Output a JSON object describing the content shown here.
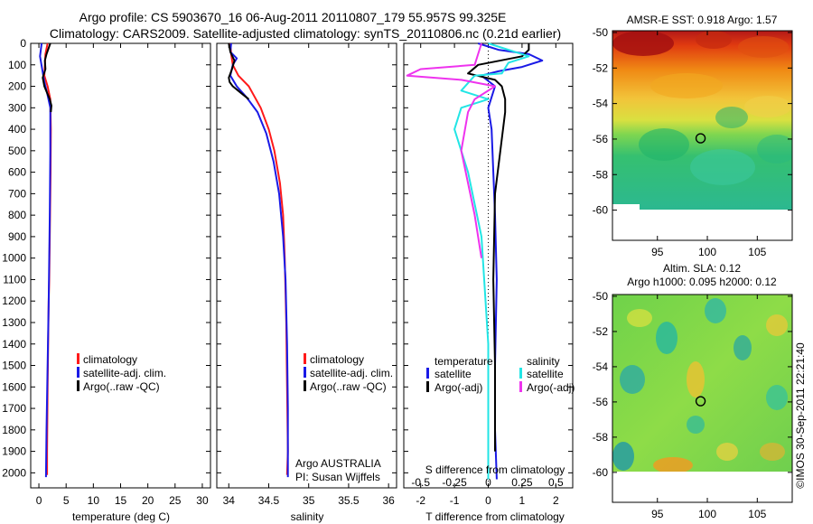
{
  "figure": {
    "title_line1": "Argo profile: CS 5903670_16 06-Aug-2011 20110807_179 55.957S 99.325E",
    "title_line2": "Climatology: CARS2009. Satellite-adjusted climatology: synTS_20110806.nc (0.21d earlier)",
    "credit_line1": "Argo AUSTRALIA",
    "credit_line2": "PI: Susan Wijffels",
    "timestamp": "©IMOS 30-Sep-2011 22:21:40"
  },
  "colors": {
    "climatology": "#ff1a1a",
    "satellite": "#1a1ae6",
    "argo": "#000000",
    "sat_sal": "#22e5e5",
    "argo_sal": "#ee33ee"
  },
  "chart_data": [
    {
      "type": "line",
      "xlabel": "temperature (deg C)",
      "ylabel": "",
      "xlim": [
        -1.5,
        31.5
      ],
      "ylim": [
        2070,
        0
      ],
      "xticks": [
        0,
        5,
        10,
        15,
        20,
        25,
        30
      ],
      "yticks": [
        0,
        100,
        200,
        300,
        400,
        500,
        600,
        700,
        800,
        900,
        1000,
        1100,
        1200,
        1300,
        1400,
        1500,
        1600,
        1700,
        1800,
        1900,
        2000
      ],
      "legend": [
        "climatology",
        "satellite-adj. clim.",
        "Argo(..raw -QC)"
      ],
      "series": [
        {
          "name": "climatology",
          "color": "#ff1a1a",
          "x": [
            1.6,
            1.2,
            1.0,
            1.6,
            2.1,
            2.2,
            2.15,
            2.1,
            2.05,
            2.0,
            1.95,
            1.9,
            1.8,
            1.7,
            1.6,
            1.5,
            1.5
          ],
          "y": [
            0,
            50,
            150,
            200,
            260,
            400,
            600,
            700,
            800,
            900,
            1000,
            1100,
            1200,
            1400,
            1600,
            1900,
            2010
          ]
        },
        {
          "name": "satellite-adj. clim.",
          "color": "#1a1ae6",
          "x": [
            0.5,
            0.2,
            0.6,
            1.0,
            1.5,
            2.1,
            2.1,
            2.0,
            1.9,
            1.8,
            1.6,
            1.4,
            1.3
          ],
          "y": [
            0,
            60,
            120,
            180,
            230,
            300,
            500,
            800,
            1000,
            1200,
            1500,
            1800,
            2020
          ]
        },
        {
          "name": "Argo(..raw -QC)",
          "color": "#000000",
          "x": [
            2.1,
            1.4,
            1.1,
            1.2,
            0.7,
            1.0,
            1.5,
            2.0,
            2.3,
            2.2
          ],
          "y": [
            0,
            50,
            80,
            120,
            160,
            200,
            230,
            260,
            290,
            320
          ]
        }
      ]
    },
    {
      "type": "line",
      "xlabel": "salinity",
      "ylabel": "",
      "xlim": [
        33.85,
        36.1
      ],
      "ylim": [
        2070,
        0
      ],
      "xticks": [
        34,
        34.5,
        35,
        35.5,
        36
      ],
      "xtick_labels": [
        "34",
        "34.5",
        "35",
        "35.5",
        "36"
      ],
      "legend": [
        "climatology",
        "satellite-adj. clim.",
        "Argo(..raw -QC)"
      ],
      "series": [
        {
          "name": "climatology",
          "color": "#ff1a1a",
          "x": [
            34.02,
            34.03,
            34.05,
            34.12,
            34.25,
            34.4,
            34.5,
            34.57,
            34.64,
            34.68,
            34.7,
            34.72,
            34.73,
            34.74,
            34.73
          ],
          "y": [
            0,
            50,
            100,
            150,
            200,
            300,
            400,
            500,
            650,
            800,
            1000,
            1300,
            1600,
            1900,
            2010
          ]
        },
        {
          "name": "satellite-adj. clim.",
          "color": "#1a1ae6",
          "x": [
            34.03,
            34.02,
            34.1,
            34.05,
            34.02,
            34.1,
            34.22,
            34.36,
            34.47,
            34.56,
            34.63,
            34.68,
            34.71,
            34.73,
            34.74,
            34.74
          ],
          "y": [
            0,
            40,
            70,
            100,
            150,
            200,
            250,
            320,
            420,
            550,
            700,
            900,
            1100,
            1400,
            1700,
            2020
          ]
        },
        {
          "name": "Argo(..raw -QC)",
          "color": "#000000",
          "x": [
            34.0,
            34.02,
            34.07,
            34.04,
            34.0,
            34.01,
            34.05,
            34.15,
            34.25
          ],
          "y": [
            0,
            40,
            80,
            120,
            160,
            180,
            200,
            230,
            260
          ]
        }
      ]
    },
    {
      "type": "line",
      "xlabel": "T difference from climatology",
      "xlabel_top": "S difference from climatology",
      "ylabel": "",
      "xlim": [
        -2.5,
        2.5
      ],
      "ylim": [
        2070,
        0
      ],
      "xticks": [
        -2,
        -1,
        0,
        1,
        2
      ],
      "xticks_top": [
        -0.5,
        -0.25,
        0,
        0.25,
        0.5
      ],
      "xtick_labels_top": [
        "-0.5",
        "-0.25",
        "0",
        "0.25",
        "0.5"
      ],
      "legend_titles": [
        "temperature",
        "salinity"
      ],
      "legend": [
        "satellite",
        "Argo(-adj)",
        "satellite",
        "Argo(-adj)"
      ],
      "series": [
        {
          "name": "satellite",
          "group": "temperature",
          "color": "#1a1ae6",
          "x": [
            -0.3,
            0.3,
            1.2,
            1.6,
            1.0,
            0.3,
            -0.2,
            0.2,
            0.0,
            0.1,
            0.15,
            0.2,
            0.25,
            0.2,
            0.2,
            0.25
          ],
          "y": [
            0,
            30,
            50,
            80,
            110,
            130,
            150,
            200,
            300,
            400,
            600,
            800,
            1100,
            1500,
            1800,
            2030
          ]
        },
        {
          "name": "Argo(-adj)",
          "group": "temperature",
          "color": "#000000",
          "x": [
            1.2,
            1.2,
            1.0,
            -0.3,
            -0.6,
            0.2,
            0.4,
            0.5,
            0.5,
            0.2,
            0.15,
            0.2,
            0.2
          ],
          "y": [
            0,
            30,
            60,
            100,
            140,
            170,
            200,
            260,
            320,
            700,
            1100,
            1500,
            1900
          ]
        },
        {
          "name": "satellite",
          "group": "salinity",
          "color": "#22e5e5",
          "x": [
            0.0,
            0.3,
            0.15,
            0.1,
            -0.1,
            -0.2,
            0.0,
            -0.2,
            -0.25,
            -0.15,
            -0.05,
            0.0,
            0.0
          ],
          "y": [
            0,
            60,
            90,
            140,
            150,
            220,
            260,
            300,
            400,
            600,
            900,
            1400,
            2030
          ]
        },
        {
          "name": "Argo(-adj)",
          "group": "salinity",
          "color": "#ee33ee",
          "x": [
            -0.05,
            -0.1,
            -0.5,
            -0.6,
            -0.2,
            0.05,
            -0.1,
            -0.15,
            -0.2,
            -0.1,
            -0.05
          ],
          "y": [
            0,
            100,
            120,
            150,
            170,
            200,
            260,
            320,
            500,
            800,
            1000
          ]
        }
      ]
    },
    {
      "type": "heatmap",
      "title": "AMSR-E SST: 0.918 Argo: 1.57",
      "xlim": [
        90.5,
        108.5
      ],
      "ylim": [
        -61.7,
        -49.9
      ],
      "xticks": [
        95,
        100,
        105
      ],
      "yticks": [
        -50,
        -52,
        -54,
        -56,
        -58,
        -60
      ],
      "marker": {
        "lon": 99.325,
        "lat": -55.957
      }
    },
    {
      "type": "heatmap",
      "title_line1": "Altim. SLA: 0.12",
      "title_line2": "Argo h1000: 0.095 h2000: 0.12",
      "xlim": [
        90.5,
        108.5
      ],
      "ylim": [
        -61.7,
        -49.9
      ],
      "xticks": [
        95,
        100,
        105
      ],
      "yticks": [
        -50,
        -52,
        -54,
        -56,
        -58,
        -60
      ],
      "marker": {
        "lon": 99.325,
        "lat": -55.957
      }
    }
  ]
}
